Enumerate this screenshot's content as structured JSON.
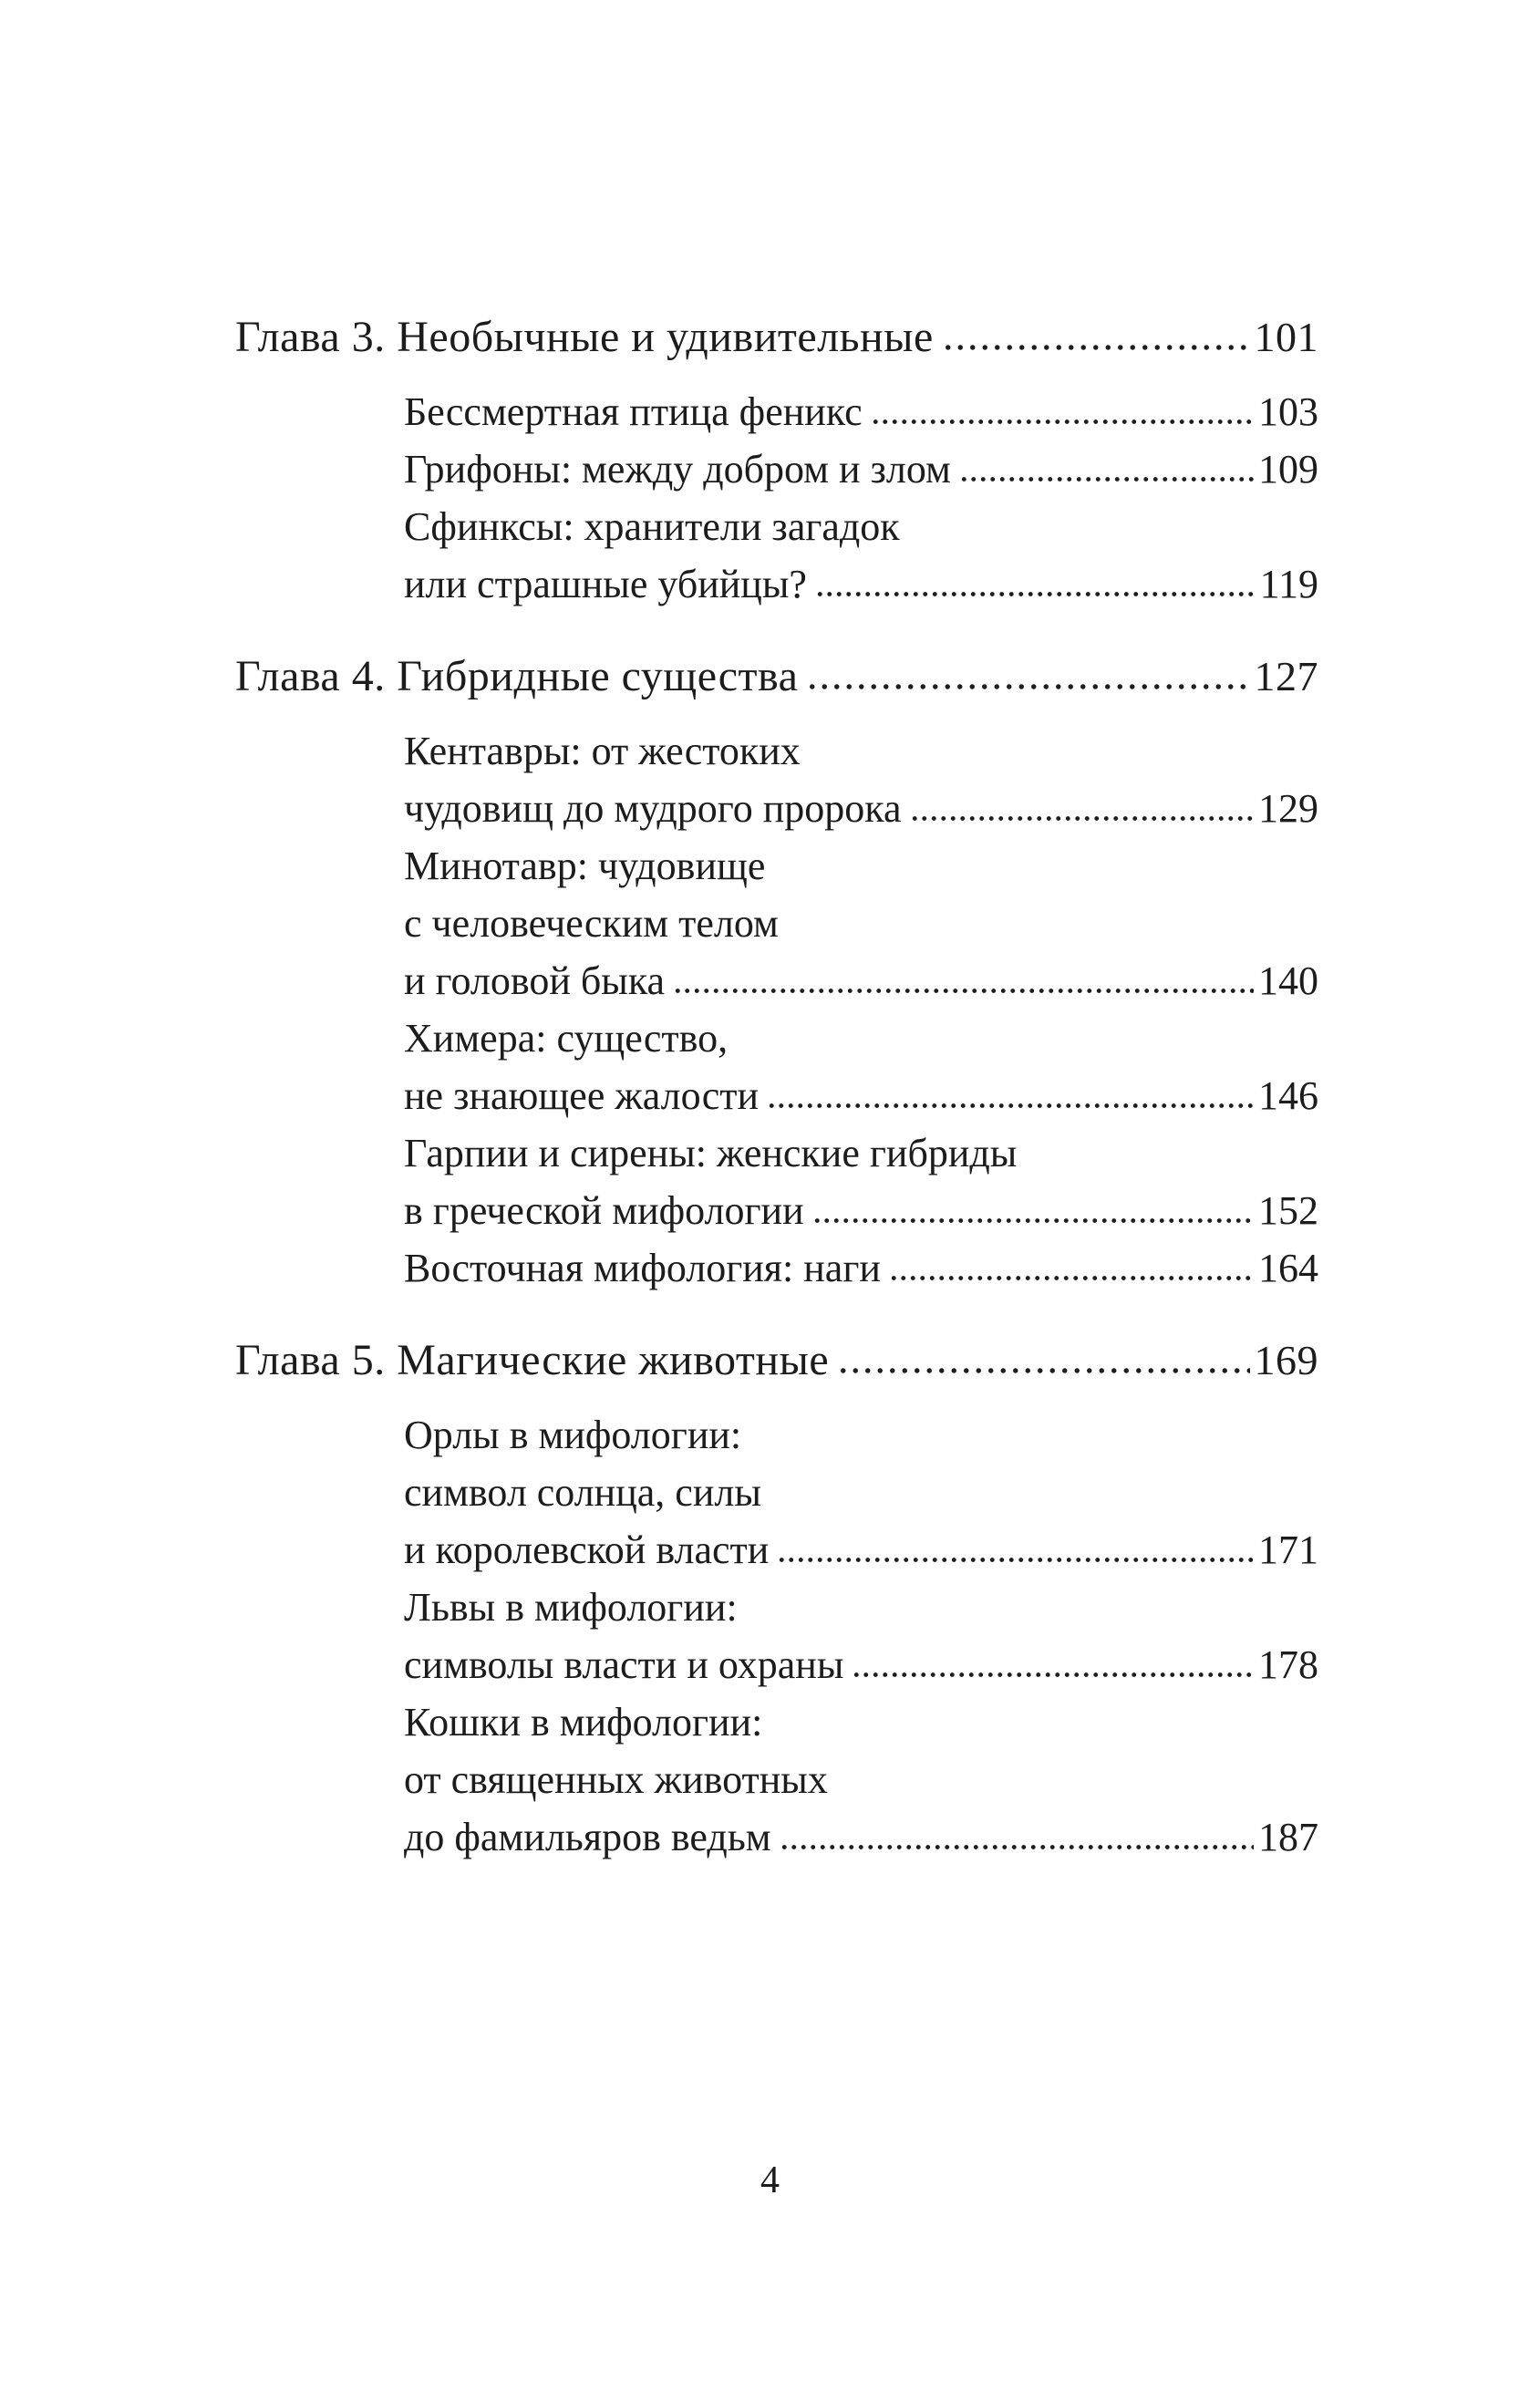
{
  "page": {
    "footer_page_number": "4"
  },
  "colors": {
    "text": "#1c1c1c",
    "background": "#ffffff"
  },
  "toc": {
    "chapters": [
      {
        "title": "Глава 3. Необычные и удивительные",
        "page": "101",
        "items": [
          {
            "lines": [
              "Бессмертная птица феникс"
            ],
            "page": "103"
          },
          {
            "lines": [
              "Грифоны: между добром и злом"
            ],
            "page": "109"
          },
          {
            "lines": [
              "Сфинксы: хранители загадок",
              "или страшные убийцы?"
            ],
            "page": "119"
          }
        ]
      },
      {
        "title": "Глава 4. Гибридные существа",
        "page": "127",
        "items": [
          {
            "lines": [
              "Кентавры: от жестоких",
              "чудовищ до мудрого пророка"
            ],
            "page": "129"
          },
          {
            "lines": [
              "Минотавр: чудовище",
              "с человеческим телом",
              "и головой быка"
            ],
            "page": "140"
          },
          {
            "lines": [
              "Химера: существо,",
              "не знающее жалости"
            ],
            "page": "146"
          },
          {
            "lines": [
              "Гарпии и сирены: женские гибриды",
              "в греческой мифологии"
            ],
            "page": "152"
          },
          {
            "lines": [
              "Восточная мифология: наги"
            ],
            "page": "164"
          }
        ]
      },
      {
        "title": "Глава 5. Магические животные",
        "page": "169",
        "items": [
          {
            "lines": [
              "Орлы в мифологии:",
              "символ солнца, силы",
              "и королевской власти"
            ],
            "page": "171"
          },
          {
            "lines": [
              "Львы в мифологии:",
              "символы власти и охраны"
            ],
            "page": "178"
          },
          {
            "lines": [
              "Кошки в мифологии:",
              "от священных животных",
              "до фамильяров ведьм"
            ],
            "page": "187"
          }
        ]
      }
    ]
  }
}
